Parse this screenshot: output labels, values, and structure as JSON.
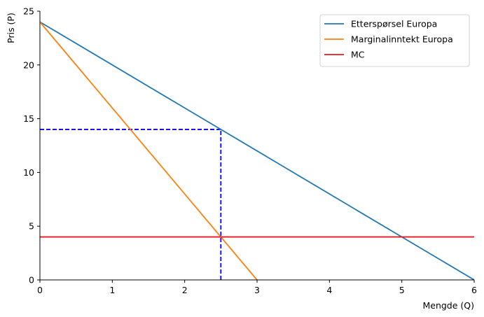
{
  "chart_data": {
    "type": "line",
    "title": "",
    "xlabel": "Mengde (Q)",
    "ylabel": "Pris (P)",
    "xlim": [
      0,
      6
    ],
    "ylim": [
      0,
      25
    ],
    "x_ticks": [
      0,
      1,
      2,
      3,
      4,
      5,
      6
    ],
    "y_ticks": [
      0,
      5,
      10,
      15,
      20,
      25
    ],
    "grid": false,
    "legend_position": "top-right",
    "series": [
      {
        "name": "Etterspørsel Europa",
        "color": "#1f77b4",
        "style": "solid",
        "x": [
          0,
          6
        ],
        "y": [
          24,
          0
        ]
      },
      {
        "name": "Marginalinntekt Europa",
        "color": "#ff7f0e",
        "style": "solid",
        "x": [
          0,
          3
        ],
        "y": [
          24,
          0
        ]
      },
      {
        "name": "MC",
        "color": "#e41a1c",
        "style": "solid",
        "x": [
          0,
          6
        ],
        "y": [
          4,
          4
        ]
      }
    ],
    "guides": [
      {
        "color": "#0000ff",
        "style": "dashed",
        "x": [
          0,
          2.5
        ],
        "y": [
          14,
          14
        ]
      },
      {
        "color": "#0000ff",
        "style": "dashed",
        "x": [
          2.5,
          2.5
        ],
        "y": [
          0,
          14
        ]
      }
    ]
  }
}
